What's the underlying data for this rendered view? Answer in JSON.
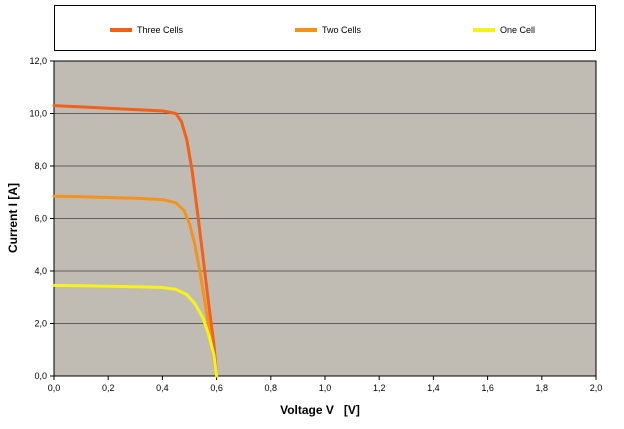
{
  "chart_data": {
    "type": "line",
    "xlabel": "Voltage V   [V]",
    "ylabel": "Current I [A]",
    "xlim": [
      0,
      2.0
    ],
    "ylim": [
      0,
      12.0
    ],
    "x_ticks": [
      "0,0",
      "0,2",
      "0,4",
      "0,6",
      "0,8",
      "1,0",
      "1,2",
      "1,4",
      "1,6",
      "1,8",
      "2,0"
    ],
    "y_ticks": [
      "0,0",
      "2,0",
      "4,0",
      "6,0",
      "8,0",
      "10,0",
      "12,0"
    ],
    "grid": "horizontal",
    "legend_position": "top",
    "plot_background": "#c0bcb4",
    "series": [
      {
        "name": "Three Cells",
        "color": "#f2601a",
        "points": [
          [
            0,
            10.3
          ],
          [
            0.1,
            10.25
          ],
          [
            0.2,
            10.2
          ],
          [
            0.3,
            10.15
          ],
          [
            0.4,
            10.1
          ],
          [
            0.45,
            10.0
          ],
          [
            0.47,
            9.7
          ],
          [
            0.49,
            9.0
          ],
          [
            0.51,
            7.8
          ],
          [
            0.53,
            6.2
          ],
          [
            0.55,
            4.5
          ],
          [
            0.57,
            2.8
          ],
          [
            0.59,
            1.2
          ],
          [
            0.6,
            0.0
          ]
        ]
      },
      {
        "name": "Two Cells",
        "color": "#f5921e",
        "points": [
          [
            0,
            6.85
          ],
          [
            0.1,
            6.83
          ],
          [
            0.2,
            6.8
          ],
          [
            0.3,
            6.77
          ],
          [
            0.4,
            6.72
          ],
          [
            0.45,
            6.6
          ],
          [
            0.48,
            6.3
          ],
          [
            0.5,
            5.8
          ],
          [
            0.52,
            5.0
          ],
          [
            0.54,
            3.9
          ],
          [
            0.56,
            2.6
          ],
          [
            0.58,
            1.3
          ],
          [
            0.6,
            0.0
          ]
        ]
      },
      {
        "name": "One Cell",
        "color": "#f5f21c",
        "points": [
          [
            0,
            3.45
          ],
          [
            0.1,
            3.44
          ],
          [
            0.2,
            3.42
          ],
          [
            0.3,
            3.4
          ],
          [
            0.4,
            3.37
          ],
          [
            0.45,
            3.3
          ],
          [
            0.49,
            3.1
          ],
          [
            0.52,
            2.75
          ],
          [
            0.55,
            2.2
          ],
          [
            0.57,
            1.6
          ],
          [
            0.59,
            0.8
          ],
          [
            0.6,
            0.0
          ]
        ]
      }
    ]
  }
}
